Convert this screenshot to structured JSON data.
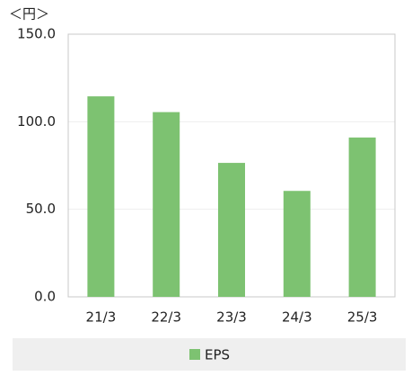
{
  "chart_data": {
    "type": "bar",
    "y_unit": "＜円＞",
    "categories": [
      "21/3",
      "22/3",
      "23/3",
      "24/3",
      "25/3"
    ],
    "series": [
      {
        "name": "EPS",
        "color": "#7dc271",
        "values": [
          114.5,
          105.5,
          76.5,
          60.5,
          91
        ]
      }
    ],
    "ylim": [
      0,
      150
    ],
    "yticks": [
      {
        "value": 0,
        "label": "0.0"
      },
      {
        "value": 50,
        "label": "50.0"
      },
      {
        "value": 100,
        "label": "100.0"
      },
      {
        "value": 150,
        "label": "150.0"
      }
    ],
    "grid": true,
    "legend": "bottom"
  }
}
